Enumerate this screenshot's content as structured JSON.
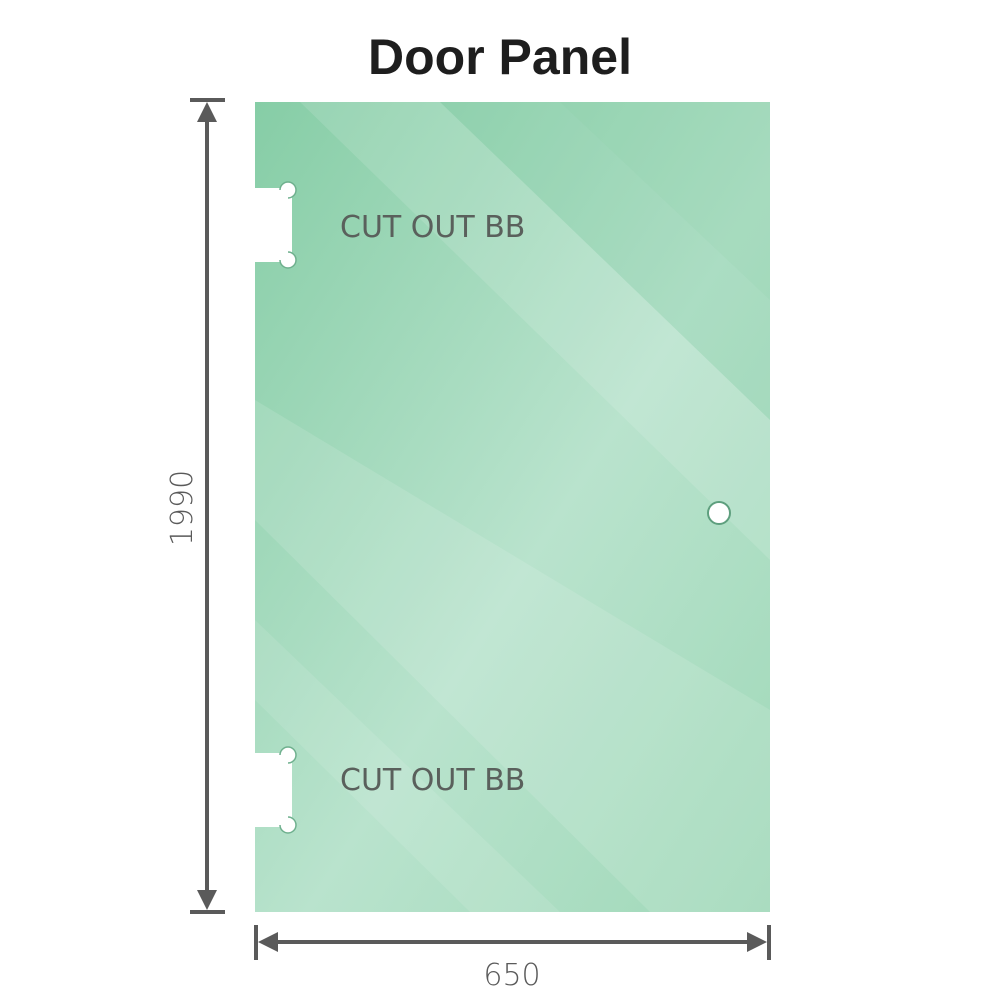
{
  "title": "Door Panel",
  "panel": {
    "color": "#8fd0ac",
    "cutout_labels": [
      "CUT OUT BB",
      "CUT OUT BB"
    ]
  },
  "dimensions": {
    "height": "1990",
    "width": "650",
    "line_color": "#5a5a5a"
  }
}
